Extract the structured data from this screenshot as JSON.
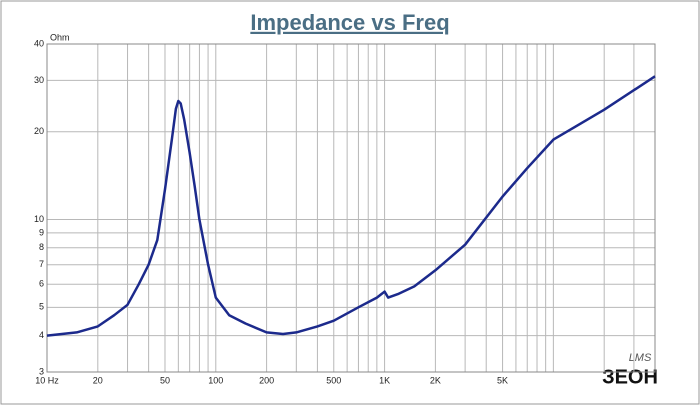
{
  "chart_data": {
    "type": "line",
    "title": "Impedance vs Freq",
    "ylabel": "Ohm",
    "x": [
      10,
      15,
      20,
      25,
      30,
      35,
      40,
      45,
      50,
      55,
      58,
      60,
      62,
      65,
      70,
      75,
      80,
      90,
      100,
      120,
      150,
      200,
      250,
      300,
      400,
      500,
      700,
      900,
      1000,
      1050,
      1200,
      1500,
      2000,
      3000,
      5000,
      7000,
      10000,
      20000,
      40000
    ],
    "values": [
      4.0,
      4.1,
      4.3,
      4.7,
      5.1,
      6.0,
      7.0,
      8.5,
      12.7,
      19,
      24,
      25.5,
      25,
      22,
      17,
      13,
      10,
      7,
      5.4,
      4.7,
      4.4,
      4.1,
      4.05,
      4.1,
      4.3,
      4.5,
      5.0,
      5.4,
      5.66,
      5.4,
      5.55,
      5.9,
      6.7,
      8.2,
      12,
      15,
      18.8,
      23.8,
      31
    ],
    "color": "#1c2a8c",
    "log_x": true,
    "log_y": true,
    "grid": true,
    "xlim": [
      10,
      40000
    ],
    "ylim": [
      3,
      40
    ],
    "xticks": [
      {
        "value": 10,
        "label": "10 Hz"
      },
      20,
      50,
      100,
      200,
      500,
      {
        "value": 1000,
        "label": "1K"
      },
      {
        "value": 2000,
        "label": "2K"
      },
      {
        "value": 5000,
        "label": "5K"
      }
    ],
    "x_minor_ticks": [
      30,
      40,
      60,
      70,
      80,
      90,
      300,
      400,
      600,
      700,
      800,
      900,
      3000,
      4000,
      6000,
      7000,
      8000,
      9000,
      10000,
      20000,
      30000
    ],
    "yticks": [
      3,
      4,
      5,
      6,
      7,
      8,
      9,
      10,
      20,
      30,
      40
    ],
    "watermark": [
      "LMS",
      "ЗЕОН"
    ]
  }
}
